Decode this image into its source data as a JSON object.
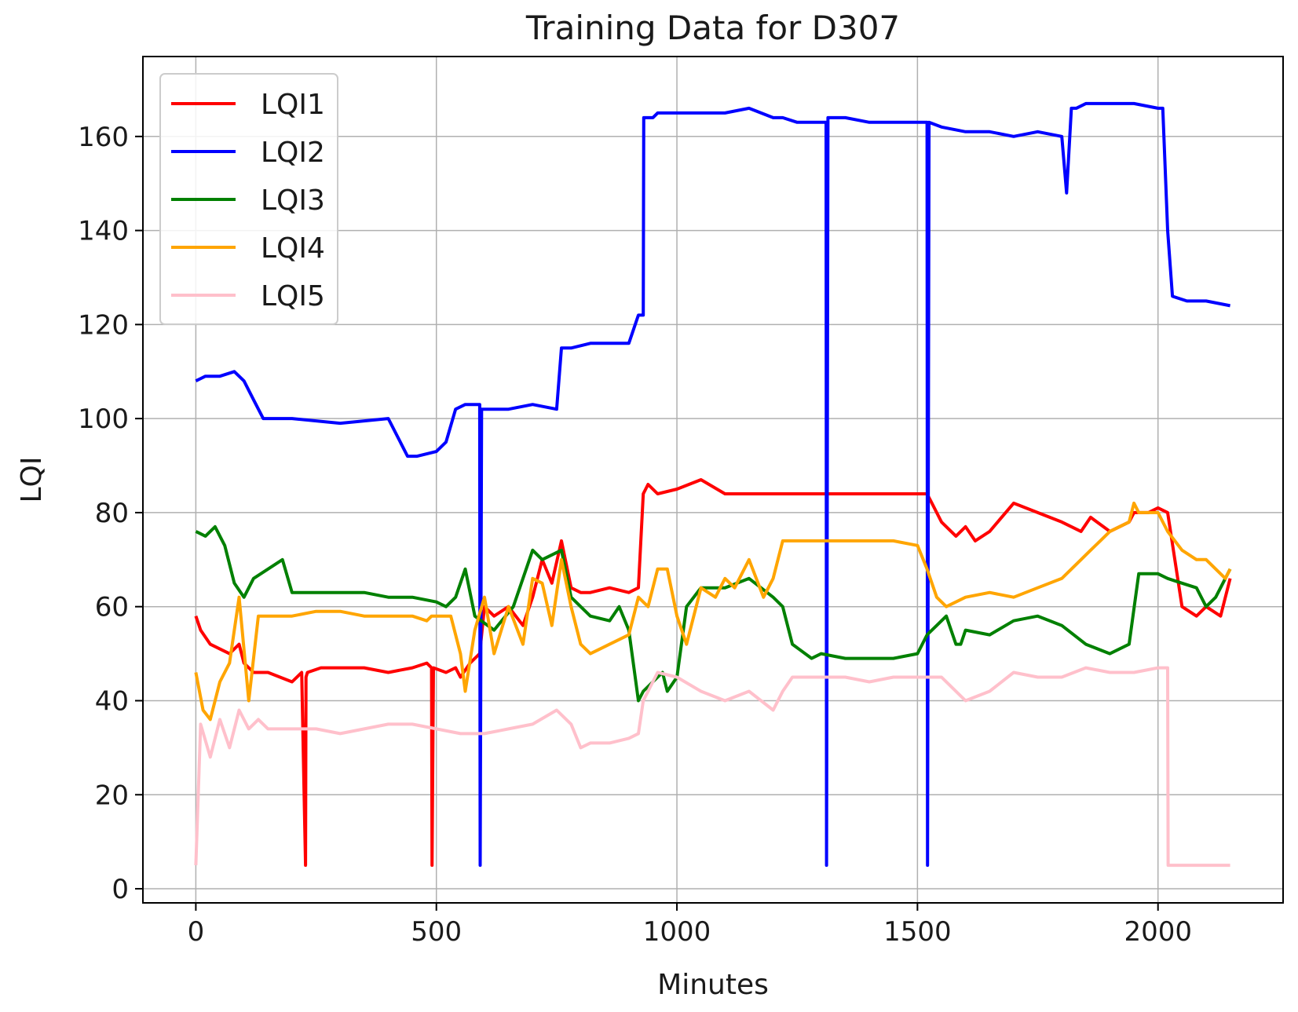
{
  "chart_data": {
    "type": "line",
    "title": "Training Data for D307",
    "xlabel": "Minutes",
    "ylabel": "LQI",
    "xlim": [
      -110,
      2260
    ],
    "ylim": [
      -3,
      177
    ],
    "xticks": [
      0,
      500,
      1000,
      1500,
      2000
    ],
    "yticks": [
      0,
      20,
      40,
      60,
      80,
      100,
      120,
      140,
      160
    ],
    "grid": true,
    "legend_position": "top-left",
    "series": [
      {
        "name": "LQI1",
        "color": "#ff0000",
        "x": [
          0,
          10,
          30,
          50,
          70,
          90,
          100,
          120,
          150,
          200,
          220,
          228,
          229,
          232,
          260,
          300,
          350,
          400,
          450,
          480,
          490,
          491,
          494,
          520,
          540,
          550,
          570,
          590,
          600,
          620,
          650,
          680,
          700,
          720,
          740,
          760,
          780,
          800,
          820,
          860,
          900,
          920,
          930,
          940,
          960,
          1000,
          1050,
          1100,
          1150,
          1200,
          1220,
          1230,
          1260,
          1280,
          1300,
          1350,
          1400,
          1450,
          1500,
          1520,
          1530,
          1550,
          1580,
          1600,
          1620,
          1650,
          1700,
          1750,
          1800,
          1840,
          1860,
          1900,
          1940,
          1950,
          1960,
          1980,
          2000,
          2020,
          2050,
          2080,
          2100,
          2130,
          2150
        ],
        "y": [
          58,
          55,
          52,
          51,
          50,
          52,
          48,
          46,
          46,
          44,
          46,
          5,
          45,
          46,
          47,
          47,
          47,
          46,
          47,
          48,
          47,
          5,
          47,
          46,
          47,
          45,
          48,
          50,
          60,
          58,
          60,
          56,
          62,
          70,
          65,
          74,
          64,
          63,
          63,
          64,
          63,
          64,
          84,
          86,
          84,
          85,
          87,
          84,
          84,
          84,
          84,
          84,
          84,
          84,
          84,
          84,
          84,
          84,
          84,
          84,
          82,
          78,
          75,
          77,
          74,
          76,
          82,
          80,
          78,
          76,
          79,
          76,
          78,
          80,
          80,
          80,
          81,
          80,
          60,
          58,
          60,
          58,
          66
        ]
      },
      {
        "name": "LQI2",
        "color": "#0000ff",
        "x": [
          0,
          20,
          50,
          80,
          100,
          120,
          140,
          200,
          300,
          400,
          440,
          460,
          500,
          520,
          540,
          560,
          590,
          591,
          594,
          600,
          650,
          700,
          750,
          760,
          780,
          820,
          860,
          900,
          920,
          930,
          931,
          940,
          950,
          960,
          1000,
          1050,
          1100,
          1150,
          1200,
          1220,
          1250,
          1300,
          1310,
          1311,
          1314,
          1350,
          1400,
          1450,
          1500,
          1520,
          1521,
          1524,
          1550,
          1600,
          1650,
          1700,
          1750,
          1800,
          1810,
          1820,
          1830,
          1850,
          1900,
          1950,
          2000,
          2010,
          2020,
          2030,
          2060,
          2100,
          2150
        ],
        "y": [
          108,
          109,
          109,
          110,
          108,
          104,
          100,
          100,
          99,
          100,
          92,
          92,
          93,
          95,
          102,
          103,
          103,
          5,
          102,
          102,
          102,
          103,
          102,
          115,
          115,
          116,
          116,
          116,
          122,
          122,
          164,
          164,
          164,
          165,
          165,
          165,
          165,
          166,
          164,
          164,
          163,
          163,
          163,
          5,
          164,
          164,
          163,
          163,
          163,
          163,
          5,
          163,
          162,
          161,
          161,
          160,
          161,
          160,
          148,
          166,
          166,
          167,
          167,
          167,
          166,
          166,
          140,
          126,
          125,
          125,
          124
        ]
      },
      {
        "name": "LQI3",
        "color": "#008000",
        "x": [
          0,
          20,
          40,
          60,
          80,
          100,
          120,
          150,
          180,
          200,
          250,
          300,
          350,
          400,
          450,
          500,
          520,
          540,
          560,
          580,
          620,
          660,
          700,
          720,
          760,
          780,
          800,
          820,
          860,
          880,
          900,
          920,
          930,
          950,
          970,
          980,
          1000,
          1020,
          1050,
          1100,
          1150,
          1200,
          1220,
          1240,
          1280,
          1300,
          1350,
          1400,
          1450,
          1500,
          1520,
          1540,
          1560,
          1580,
          1590,
          1600,
          1650,
          1700,
          1750,
          1800,
          1850,
          1900,
          1940,
          1960,
          2000,
          2020,
          2050,
          2080,
          2100,
          2120,
          2150
        ],
        "y": [
          76,
          75,
          77,
          73,
          65,
          62,
          66,
          68,
          70,
          63,
          63,
          63,
          63,
          62,
          62,
          61,
          60,
          62,
          68,
          58,
          55,
          60,
          72,
          70,
          72,
          62,
          60,
          58,
          57,
          60,
          55,
          40,
          42,
          44,
          46,
          42,
          45,
          60,
          64,
          64,
          66,
          62,
          60,
          52,
          49,
          50,
          49,
          49,
          49,
          50,
          54,
          56,
          58,
          52,
          52,
          55,
          54,
          57,
          58,
          56,
          52,
          50,
          52,
          67,
          67,
          66,
          65,
          64,
          60,
          62,
          68
        ]
      },
      {
        "name": "LQI4",
        "color": "#ffa500",
        "x": [
          0,
          15,
          30,
          50,
          70,
          90,
          110,
          130,
          150,
          200,
          250,
          300,
          350,
          400,
          450,
          480,
          490,
          500,
          530,
          550,
          560,
          580,
          600,
          620,
          650,
          680,
          700,
          720,
          740,
          760,
          780,
          800,
          820,
          860,
          900,
          920,
          940,
          960,
          980,
          1000,
          1020,
          1050,
          1080,
          1100,
          1120,
          1150,
          1180,
          1200,
          1220,
          1240,
          1270,
          1300,
          1350,
          1400,
          1450,
          1500,
          1520,
          1540,
          1560,
          1600,
          1650,
          1700,
          1750,
          1800,
          1840,
          1860,
          1880,
          1900,
          1940,
          1950,
          1960,
          2000,
          2020,
          2050,
          2080,
          2100,
          2120,
          2140,
          2150
        ],
        "y": [
          46,
          38,
          36,
          44,
          48,
          62,
          40,
          58,
          58,
          58,
          59,
          59,
          58,
          58,
          58,
          57,
          58,
          58,
          58,
          50,
          42,
          55,
          62,
          50,
          60,
          52,
          66,
          65,
          56,
          70,
          60,
          52,
          50,
          52,
          54,
          62,
          60,
          68,
          68,
          58,
          52,
          64,
          62,
          66,
          64,
          70,
          62,
          66,
          74,
          74,
          74,
          74,
          74,
          74,
          74,
          73,
          68,
          62,
          60,
          62,
          63,
          62,
          64,
          66,
          70,
          72,
          74,
          76,
          78,
          82,
          80,
          80,
          76,
          72,
          70,
          70,
          68,
          66,
          68
        ]
      },
      {
        "name": "LQI5",
        "color": "#ffc0cb",
        "x": [
          0,
          10,
          30,
          50,
          70,
          90,
          110,
          130,
          150,
          200,
          250,
          300,
          350,
          400,
          450,
          500,
          550,
          600,
          650,
          700,
          750,
          780,
          800,
          820,
          860,
          900,
          920,
          930,
          940,
          960,
          1000,
          1050,
          1100,
          1150,
          1200,
          1220,
          1240,
          1280,
          1300,
          1350,
          1400,
          1450,
          1500,
          1550,
          1600,
          1650,
          1700,
          1750,
          1800,
          1850,
          1900,
          1950,
          2000,
          2020,
          2021,
          2050,
          2100,
          2150
        ],
        "y": [
          5,
          35,
          28,
          36,
          30,
          38,
          34,
          36,
          34,
          34,
          34,
          33,
          34,
          35,
          35,
          34,
          33,
          33,
          34,
          35,
          38,
          35,
          30,
          31,
          31,
          32,
          33,
          40,
          42,
          46,
          45,
          42,
          40,
          42,
          38,
          42,
          45,
          45,
          45,
          45,
          44,
          45,
          45,
          45,
          40,
          42,
          46,
          45,
          45,
          47,
          46,
          46,
          47,
          47,
          5,
          5,
          5,
          5
        ]
      }
    ]
  }
}
